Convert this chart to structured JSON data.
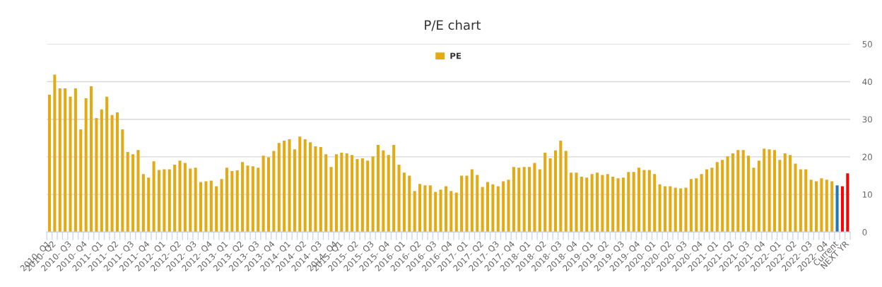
{
  "chart_data": {
    "type": "bar",
    "title": "P/E chart",
    "categories": [
      "2010- Q1",
      "2010- Q2",
      null,
      null,
      "2010- Q3",
      null,
      null,
      "2010- Q4",
      null,
      null,
      "2011- Q1",
      null,
      null,
      "2011- Q2",
      null,
      null,
      "2011- Q3",
      null,
      null,
      "2011- Q4",
      null,
      null,
      "2012- Q1",
      null,
      null,
      "2012- Q2",
      null,
      null,
      "2012- Q3",
      null,
      null,
      "2012- Q4",
      null,
      null,
      "2013- Q1",
      null,
      null,
      "2013- Q2",
      null,
      null,
      "2013- Q3",
      null,
      null,
      "2013- Q4",
      null,
      null,
      "2014- Q1",
      null,
      null,
      "2014- Q2",
      null,
      null,
      "2014- Q3",
      null,
      null,
      "2014- Q4",
      "2015- Q1",
      null,
      null,
      "2015- Q2",
      null,
      null,
      "2015- Q3",
      null,
      null,
      "2015- Q4",
      null,
      null,
      "2016- Q1",
      null,
      null,
      "2016- Q2",
      null,
      null,
      "2016- Q3",
      null,
      null,
      "2016- Q4",
      null,
      null,
      "2017- Q1",
      null,
      null,
      "2017- Q2",
      null,
      null,
      "2017- Q3",
      null,
      null,
      "2017- Q4",
      null,
      null,
      "2018- Q1",
      null,
      null,
      "2018- Q2",
      null,
      null,
      "2018- Q3",
      null,
      null,
      "2018- Q4",
      null,
      null,
      "2019- Q1",
      null,
      null,
      "2019- Q2",
      null,
      null,
      "2019- Q3",
      null,
      null,
      "2019- Q4",
      null,
      null,
      "2020- Q1",
      null,
      null,
      "2020- Q2",
      null,
      null,
      "2020- Q3",
      null,
      null,
      "2020- Q4",
      null,
      null,
      "2021- Q1",
      null,
      null,
      "2021- Q2",
      null,
      null,
      "2021- Q3",
      null,
      null,
      "2021- Q4",
      null,
      null,
      "2022- Q1",
      null,
      null,
      "2022- Q2",
      null,
      null,
      "2022- Q3",
      null,
      null,
      "2022- Q4",
      null,
      "Current",
      null,
      "NEXT YR"
    ],
    "series": [
      {
        "name": "PE",
        "color": "#e3aa14",
        "colors": [
          "#e3aa14",
          "#e3aa14",
          "#e3aa14",
          "#e3aa14",
          "#e3aa14",
          "#e3aa14",
          "#e3aa14",
          "#e3aa14",
          "#e3aa14",
          "#e3aa14",
          "#e3aa14",
          "#e3aa14",
          "#e3aa14",
          "#e3aa14",
          "#e3aa14",
          "#e3aa14",
          "#e3aa14",
          "#e3aa14",
          "#e3aa14",
          "#e3aa14",
          "#e3aa14",
          "#e3aa14",
          "#e3aa14",
          "#e3aa14",
          "#e3aa14",
          "#e3aa14",
          "#e3aa14",
          "#e3aa14",
          "#e3aa14",
          "#e3aa14",
          "#e3aa14",
          "#e3aa14",
          "#e3aa14",
          "#e3aa14",
          "#e3aa14",
          "#e3aa14",
          "#e3aa14",
          "#e3aa14",
          "#e3aa14",
          "#e3aa14",
          "#e3aa14",
          "#e3aa14",
          "#e3aa14",
          "#e3aa14",
          "#e3aa14",
          "#e3aa14",
          "#e3aa14",
          "#e3aa14",
          "#e3aa14",
          "#e3aa14",
          "#e3aa14",
          "#e3aa14",
          "#e3aa14",
          "#e3aa14",
          "#e3aa14",
          "#e3aa14",
          "#e3aa14",
          "#e3aa14",
          "#e3aa14",
          "#e3aa14",
          "#e3aa14",
          "#e3aa14",
          "#e3aa14",
          "#e3aa14",
          "#e3aa14",
          "#e3aa14",
          "#e3aa14",
          "#e3aa14",
          "#e3aa14",
          "#e3aa14",
          "#e3aa14",
          "#e3aa14",
          "#e3aa14",
          "#e3aa14",
          "#e3aa14",
          "#e3aa14",
          "#e3aa14",
          "#e3aa14",
          "#e3aa14",
          "#e3aa14",
          "#e3aa14",
          "#e3aa14",
          "#e3aa14",
          "#e3aa14",
          "#e3aa14",
          "#e3aa14",
          "#e3aa14",
          "#e3aa14",
          "#e3aa14",
          "#e3aa14",
          "#e3aa14",
          "#e3aa14",
          "#e3aa14",
          "#e3aa14",
          "#e3aa14",
          "#e3aa14",
          "#e3aa14",
          "#e3aa14",
          "#e3aa14",
          "#e3aa14",
          "#e3aa14",
          "#e3aa14",
          "#e3aa14",
          "#e3aa14",
          "#e3aa14",
          "#e3aa14",
          "#e3aa14",
          "#e3aa14",
          "#e3aa14",
          "#e3aa14",
          "#e3aa14",
          "#e3aa14",
          "#e3aa14",
          "#e3aa14",
          "#e3aa14",
          "#e3aa14",
          "#e3aa14",
          "#e3aa14",
          "#e3aa14",
          "#e3aa14",
          "#e3aa14",
          "#e3aa14",
          "#e3aa14",
          "#e3aa14",
          "#e3aa14",
          "#e3aa14",
          "#e3aa14",
          "#e3aa14",
          "#e3aa14",
          "#e3aa14",
          "#e3aa14",
          "#e3aa14",
          "#e3aa14",
          "#e3aa14",
          "#e3aa14",
          "#e3aa14",
          "#e3aa14",
          "#e3aa14",
          "#e3aa14",
          "#e3aa14",
          "#e3aa14",
          "#e3aa14",
          "#e3aa14",
          "#e3aa14",
          "#e3aa14",
          "#e3aa14",
          "#e3aa14",
          "#e3aa14",
          "#e3aa14",
          "#e3aa14",
          "#e3aa14",
          "#1f78b4",
          "#ff0000",
          "#ff0000"
        ],
        "values": [
          36.5,
          41.9,
          38.2,
          38.2,
          36.0,
          38.2,
          27.3,
          35.6,
          38.8,
          30.3,
          32.6,
          36.0,
          31.1,
          31.8,
          27.3,
          21.3,
          20.7,
          21.8,
          15.4,
          14.5,
          18.8,
          16.5,
          16.7,
          16.7,
          17.9,
          19.0,
          18.4,
          16.9,
          17.1,
          13.3,
          13.5,
          13.7,
          12.2,
          14.1,
          17.1,
          16.2,
          16.4,
          18.6,
          17.7,
          17.5,
          17.1,
          20.3,
          19.9,
          21.6,
          23.7,
          24.3,
          24.7,
          22.0,
          25.4,
          24.7,
          23.9,
          22.8,
          22.6,
          20.7,
          17.3,
          20.7,
          21.1,
          20.9,
          20.5,
          19.4,
          19.6,
          19.0,
          20.1,
          23.2,
          21.7,
          20.5,
          23.2,
          17.9,
          15.8,
          15.0,
          10.9,
          12.8,
          12.4,
          12.4,
          10.7,
          11.3,
          12.2,
          10.9,
          10.5,
          15.0,
          15.0,
          16.7,
          15.2,
          12.0,
          13.3,
          12.7,
          12.2,
          13.5,
          13.9,
          17.3,
          17.1,
          17.3,
          17.3,
          18.4,
          16.7,
          21.1,
          19.6,
          21.7,
          24.3,
          21.6,
          15.8,
          15.8,
          14.7,
          14.5,
          15.4,
          15.8,
          15.2,
          15.4,
          14.7,
          14.3,
          14.5,
          16.0,
          16.0,
          17.1,
          16.5,
          16.5,
          15.4,
          12.7,
          12.2,
          12.2,
          11.8,
          11.6,
          11.8,
          14.1,
          14.3,
          15.4,
          16.7,
          17.1,
          18.6,
          19.2,
          20.1,
          20.9,
          21.8,
          21.8,
          20.3,
          17.1,
          19.0,
          22.2,
          22.0,
          21.8,
          19.2,
          20.9,
          20.5,
          18.2,
          16.7,
          16.7,
          13.9,
          13.5,
          14.3,
          13.9,
          13.5,
          12.4,
          12.2,
          15.6
        ]
      }
    ],
    "ylim": [
      0,
      50
    ],
    "yticks": [
      0,
      10,
      20,
      30,
      40,
      50
    ],
    "grid": "y",
    "legend": "top"
  }
}
